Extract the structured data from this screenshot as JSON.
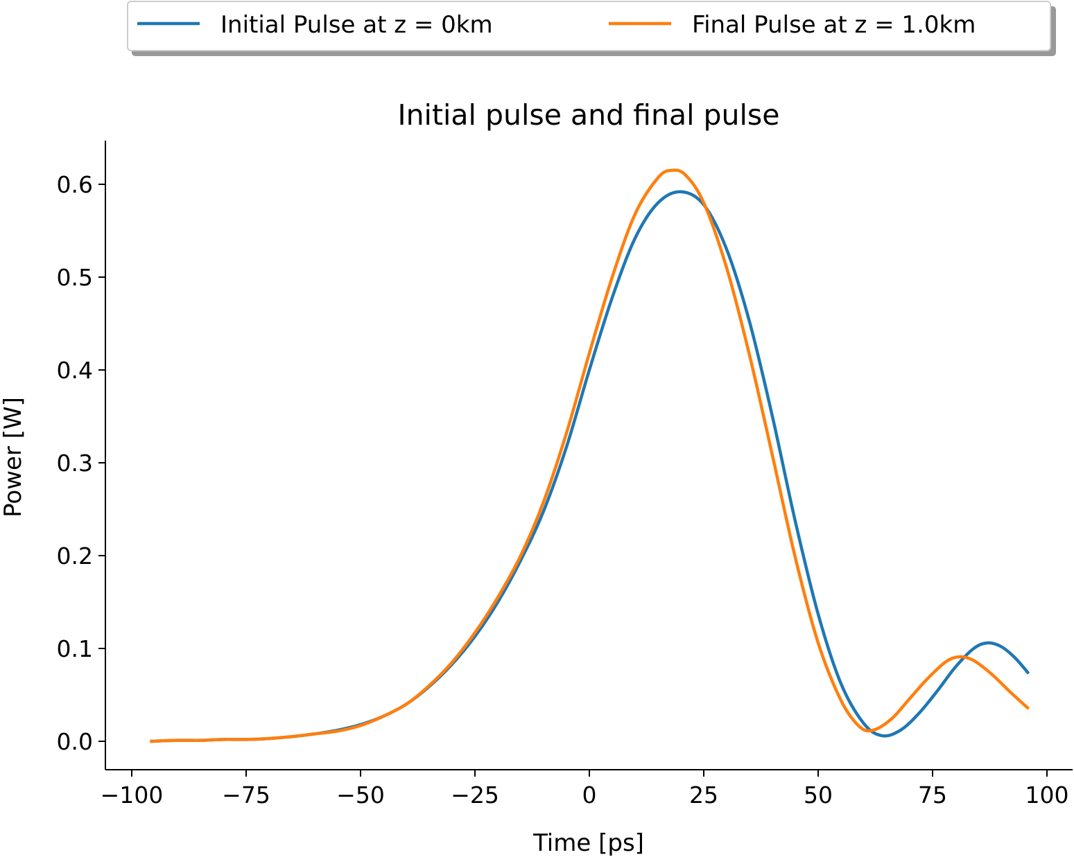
{
  "chart_data": {
    "type": "line",
    "title": "Initial pulse and final pulse",
    "xlabel": "Time [ps]",
    "ylabel": "Power [W]",
    "xlim": [
      -105,
      105
    ],
    "ylim": [
      -0.03,
      0.645
    ],
    "xticks": [
      -100,
      -75,
      -50,
      -25,
      0,
      25,
      50,
      75,
      100
    ],
    "xtick_labels": [
      "−100",
      "−75",
      "−50",
      "−25",
      "0",
      "25",
      "50",
      "75",
      "100"
    ],
    "yticks": [
      0.0,
      0.1,
      0.2,
      0.3,
      0.4,
      0.5,
      0.6
    ],
    "ytick_labels": [
      "0.0",
      "0.1",
      "0.2",
      "0.3",
      "0.4",
      "0.5",
      "0.6"
    ],
    "grid": false,
    "legend_position": "top (outside plot, above title)",
    "series": [
      {
        "name": "Initial Pulse at z = 0km",
        "color": "#1f77b4",
        "points": [
          [
            -96,
            0.0
          ],
          [
            -90,
            0.001
          ],
          [
            -85,
            0.001
          ],
          [
            -80,
            0.002
          ],
          [
            -75,
            0.002
          ],
          [
            -70,
            0.003
          ],
          [
            -65,
            0.005
          ],
          [
            -60,
            0.008
          ],
          [
            -55,
            0.012
          ],
          [
            -50,
            0.018
          ],
          [
            -45,
            0.027
          ],
          [
            -40,
            0.04
          ],
          [
            -35,
            0.059
          ],
          [
            -30,
            0.083
          ],
          [
            -25,
            0.113
          ],
          [
            -20,
            0.15
          ],
          [
            -15,
            0.195
          ],
          [
            -10,
            0.248
          ],
          [
            -5,
            0.317
          ],
          [
            0,
            0.4
          ],
          [
            5,
            0.478
          ],
          [
            10,
            0.542
          ],
          [
            15,
            0.58
          ],
          [
            20,
            0.592
          ],
          [
            25,
            0.578
          ],
          [
            30,
            0.53
          ],
          [
            35,
            0.452
          ],
          [
            40,
            0.35
          ],
          [
            45,
            0.237
          ],
          [
            50,
            0.137
          ],
          [
            55,
            0.062
          ],
          [
            60,
            0.019
          ],
          [
            64,
            0.006
          ],
          [
            68,
            0.012
          ],
          [
            72,
            0.03
          ],
          [
            76,
            0.054
          ],
          [
            80,
            0.08
          ],
          [
            84,
            0.1
          ],
          [
            87,
            0.106
          ],
          [
            90,
            0.102
          ],
          [
            93,
            0.09
          ],
          [
            96,
            0.073
          ]
        ]
      },
      {
        "name": "Final Pulse at z = 1.0km",
        "color": "#ff7f0e",
        "points": [
          [
            -96,
            0.0
          ],
          [
            -90,
            0.001
          ],
          [
            -85,
            0.001
          ],
          [
            -80,
            0.002
          ],
          [
            -75,
            0.002
          ],
          [
            -70,
            0.003
          ],
          [
            -65,
            0.005
          ],
          [
            -60,
            0.008
          ],
          [
            -55,
            0.011
          ],
          [
            -50,
            0.017
          ],
          [
            -45,
            0.027
          ],
          [
            -40,
            0.04
          ],
          [
            -35,
            0.06
          ],
          [
            -30,
            0.085
          ],
          [
            -25,
            0.117
          ],
          [
            -20,
            0.155
          ],
          [
            -15,
            0.2
          ],
          [
            -10,
            0.258
          ],
          [
            -5,
            0.332
          ],
          [
            0,
            0.418
          ],
          [
            5,
            0.5
          ],
          [
            10,
            0.568
          ],
          [
            15,
            0.607
          ],
          [
            18,
            0.615
          ],
          [
            21,
            0.61
          ],
          [
            25,
            0.58
          ],
          [
            30,
            0.51
          ],
          [
            35,
            0.416
          ],
          [
            40,
            0.308
          ],
          [
            45,
            0.198
          ],
          [
            50,
            0.106
          ],
          [
            55,
            0.044
          ],
          [
            59,
            0.016
          ],
          [
            62,
            0.012
          ],
          [
            66,
            0.024
          ],
          [
            70,
            0.046
          ],
          [
            74,
            0.068
          ],
          [
            78,
            0.086
          ],
          [
            81,
            0.091
          ],
          [
            84,
            0.087
          ],
          [
            88,
            0.072
          ],
          [
            92,
            0.053
          ],
          [
            96,
            0.035
          ]
        ]
      }
    ]
  }
}
